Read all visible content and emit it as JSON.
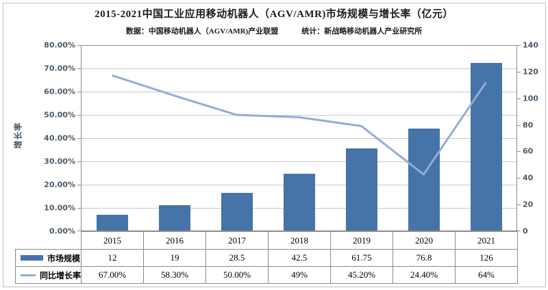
{
  "title": "2015-2021中国工业应用移动机器人（AGV/AMR)市场规模与增长率（亿元）",
  "subtitle_left": "数据：中国移动机器人（AGV/AMR)产业联盟",
  "subtitle_right": "统计：新战略移动机器人产业研究所",
  "left_axis_title": "增长率",
  "legend": {
    "bar_label": "市场规模",
    "line_label": "同比增长率"
  },
  "colors": {
    "bar": "#4673a8",
    "line": "#96aad7",
    "grid": "#c9c9c9",
    "axis": "#8a8a8a",
    "tick_text": "#4a5a68",
    "table_border": "#8a8a8a",
    "frame": "#b7bfc6"
  },
  "chart_data": {
    "type": "bar+line combo with data table",
    "categories": [
      "2015",
      "2016",
      "2017",
      "2018",
      "2019",
      "2020",
      "2021"
    ],
    "series": [
      {
        "name": "市场规模",
        "type": "bar",
        "axis": "right",
        "values": [
          12,
          19,
          28.5,
          42.5,
          61.75,
          76.8,
          126
        ],
        "labels": [
          "12",
          "19",
          "28.5",
          "42.5",
          "61.75",
          "76.8",
          "126"
        ]
      },
      {
        "name": "同比增长率",
        "type": "line",
        "axis": "left",
        "values": [
          67.0,
          58.3,
          50.0,
          49.0,
          45.2,
          24.4,
          64.0
        ],
        "labels": [
          "67.00%",
          "58.30%",
          "50.00%",
          "49%",
          "45.20%",
          "24.40%",
          "64%"
        ]
      }
    ],
    "left_axis": {
      "label": "增长率",
      "min": 0,
      "max": 80,
      "step": 10,
      "unit": "%"
    },
    "right_axis": {
      "min": 0,
      "max": 140,
      "step": 20
    },
    "left_tick_labels": [
      "80.00%",
      "70.00%",
      "60.00%",
      "50.00%",
      "40.00%",
      "30.00%",
      "20.00%",
      "10.00%",
      "0.00%"
    ],
    "right_tick_labels": [
      "140",
      "120",
      "100",
      "80",
      "60",
      "40",
      "20",
      "0"
    ],
    "grid": true,
    "legend_position": "data-table-left"
  }
}
